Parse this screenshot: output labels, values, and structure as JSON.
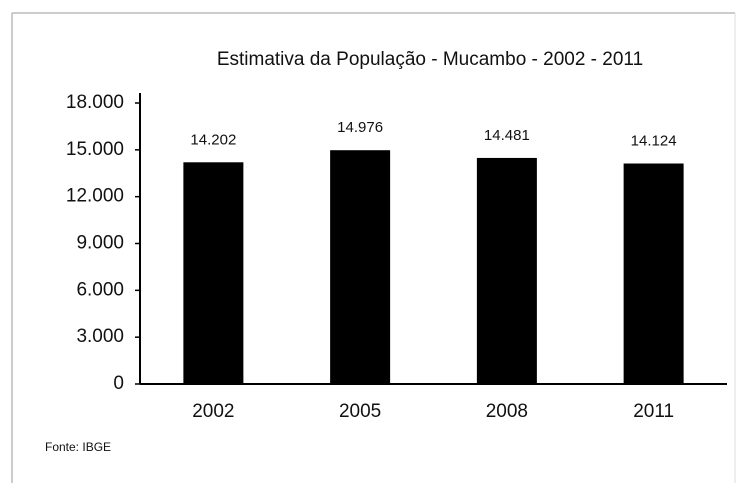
{
  "chart_data": {
    "type": "bar",
    "title": "Estimativa da População - Mucambo - 2002 - 2011",
    "categories": [
      "2002",
      "2005",
      "2008",
      "2011"
    ],
    "values": [
      14202,
      14976,
      14481,
      14124
    ],
    "value_labels": [
      "14.202",
      "14.976",
      "14.481",
      "14.124"
    ],
    "color": "#000000",
    "ylim": [
      0,
      18000
    ],
    "yticks": [
      0,
      {
        "value": 3000,
        "label": "3.000"
      },
      {
        "value": 6000,
        "label": "6.000"
      },
      {
        "value": 9000,
        "label": "9.000"
      },
      {
        "value": 12000,
        "label": "12.000"
      },
      {
        "value": 15000,
        "label": "15.000"
      },
      {
        "value": 18000,
        "label": "18.000"
      }
    ],
    "grid": false,
    "note": "Fonte: IBGE"
  }
}
